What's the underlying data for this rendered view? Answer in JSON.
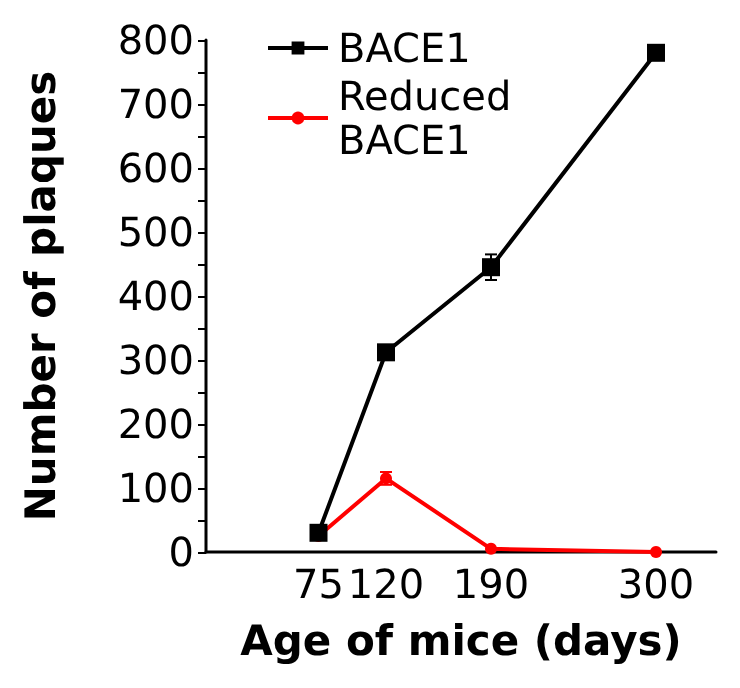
{
  "chart_data": {
    "type": "line",
    "xlabel": "Age of mice (days)",
    "ylabel": "Number of plaques",
    "x": [
      75,
      120,
      190,
      300
    ],
    "series": [
      {
        "name": "BACE1",
        "color": "#000000",
        "marker": "square",
        "values": [
          30,
          312,
          445,
          780
        ],
        "errors": [
          null,
          null,
          20,
          null
        ]
      },
      {
        "name": "Reduced BACE1",
        "color": "#ff0000",
        "marker": "circle",
        "values": [
          25,
          115,
          5,
          0
        ],
        "errors": [
          null,
          10,
          null,
          null
        ]
      }
    ],
    "xlim": [
      0,
      340
    ],
    "xticks": [
      75,
      120,
      190,
      300
    ],
    "ylim": [
      0,
      800
    ],
    "yticks": [
      0,
      {
        "value": 50,
        "label": null
      },
      100,
      {
        "value": 150,
        "label": null
      },
      200,
      {
        "value": 250,
        "label": null
      },
      300,
      {
        "value": 350,
        "label": null
      },
      400,
      {
        "value": 450,
        "label": null
      },
      500,
      {
        "value": 550,
        "label": null
      },
      600,
      {
        "value": 650,
        "label": null
      },
      700,
      {
        "value": 750,
        "label": null
      },
      800
    ],
    "legend": "top left",
    "grid": false
  }
}
